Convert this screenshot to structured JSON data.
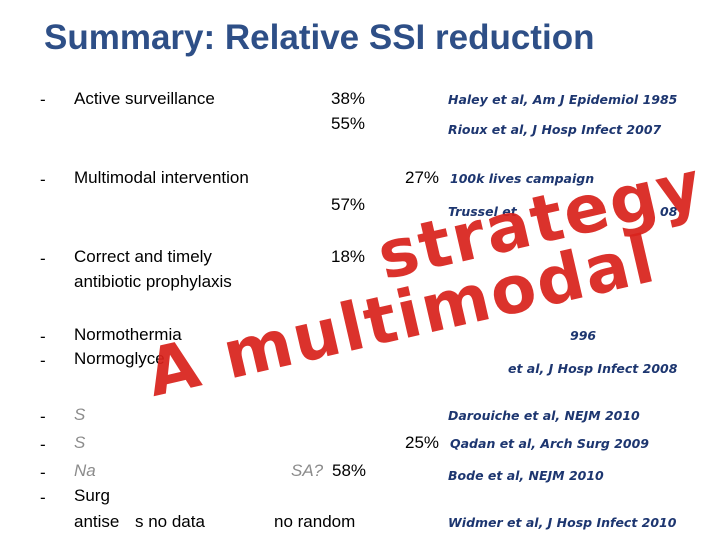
{
  "title": "Summary: Relative SSI reduction",
  "rows": {
    "active_surveillance": {
      "bullet": "-",
      "label": "Active surveillance",
      "pct_1": "38%",
      "pct_2": "55%",
      "ref_1": "Haley et al, Am J Epidemiol 1985",
      "ref_2": "Rioux et al, J Hosp Infect 2007"
    },
    "multimodal": {
      "bullet": "-",
      "label": "Multimodal intervention",
      "pct_1": "27%",
      "pct_2": "57%",
      "ref_1": "100k lives campaign",
      "ref_2": "Trussel et",
      "ref_2_tail": "08"
    },
    "antibiotic": {
      "bullet": "-",
      "label_1": "Correct and timely",
      "label_2": "antibiotic prophylaxis",
      "pct": "18%"
    },
    "normothermia": {
      "bullet": "-",
      "label": "Normothermia",
      "ref_tail": "996"
    },
    "normoglycemia": {
      "bullet": "-",
      "label": "Normoglyce",
      "ref": "et al, J Hosp Infect 2008"
    },
    "row_s1": {
      "bullet": "-",
      "label": "S",
      "ref": "Darouiche et al, NEJM 2010"
    },
    "row_s2": {
      "bullet": "-",
      "label": "S",
      "pct": "25%",
      "ref": "Qadan et al, Arch Surg 2009"
    },
    "nasal": {
      "bullet": "-",
      "label": "Na",
      "label_tail": "SA?",
      "pct": "58%",
      "ref": "Bode et al, NEJM 2010"
    },
    "surgical": {
      "bullet": "-",
      "label_1": "Surg",
      "label_2_a": "antise",
      "label_2_b": "s no data",
      "pct": "no random",
      "ref": "Widmer et al, J Hosp Infect 2010"
    }
  },
  "stamp": {
    "line_1": "strategy",
    "line_2": "A multimodal",
    "color": "#d9231d"
  }
}
